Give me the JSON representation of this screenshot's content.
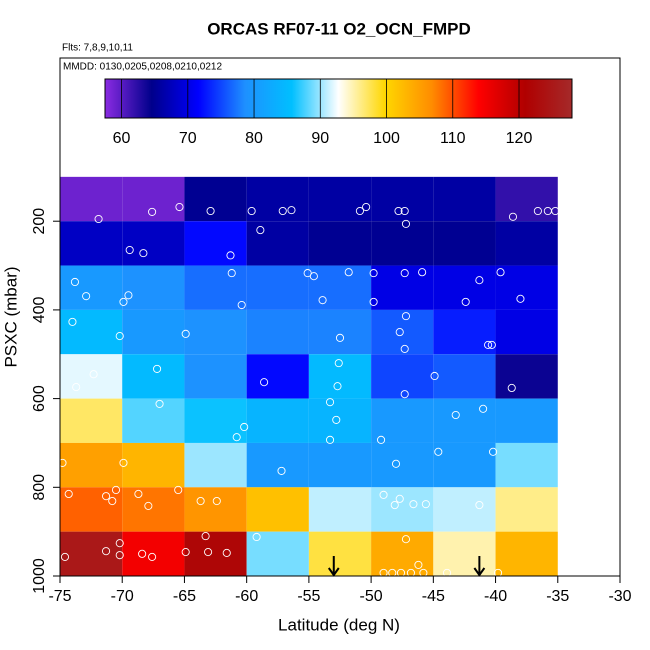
{
  "chart_data": {
    "type": "heatmap",
    "title": "ORCAS RF07-11 O2_OCN_FMPD",
    "subtitle": "Flts: 7,8,9,10,11",
    "annotation": "MMDD: 0130,0205,0208,0210,0212",
    "x_label": "Latitude (deg N)",
    "y_label": "PSXC (mbar)",
    "xlim": [
      -75,
      -30
    ],
    "ylim": [
      1000,
      -168
    ],
    "xticks": [
      -75,
      -70,
      -65,
      -60,
      -55,
      -50,
      -45,
      -40,
      -35,
      -30
    ],
    "yticks": [
      200,
      400,
      600,
      800,
      1000
    ],
    "x_bins": [
      -75,
      -70,
      -65,
      -60,
      -55,
      -50,
      -45,
      -40,
      -35
    ],
    "y_bins": [
      100,
      200,
      300,
      400,
      500,
      600,
      700,
      800,
      900,
      1000
    ],
    "z": [
      [
        59,
        59,
        65,
        66,
        66,
        66,
        66,
        62
      ],
      [
        68,
        68,
        72,
        66,
        65,
        65,
        65,
        66
      ],
      [
        80,
        79,
        77,
        77,
        77,
        70,
        70,
        70
      ],
      [
        85,
        80,
        79,
        78,
        78,
        76,
        73,
        70
      ],
      [
        92,
        85,
        79,
        72,
        85,
        75,
        76,
        64
      ],
      [
        97,
        88,
        86,
        84,
        84,
        80,
        80,
        80
      ],
      [
        105,
        103,
        90,
        80,
        80,
        80,
        80,
        89
      ],
      [
        109,
        108,
        106,
        102,
        91,
        90,
        91,
        96
      ],
      [
        125,
        115,
        122,
        89,
        98,
        104,
        95,
        103
      ]
    ],
    "clim": [
      57.5,
      128
    ],
    "colorbar_ticks": [
      60,
      70,
      80,
      90,
      100,
      110,
      120
    ],
    "colormap": [
      "#8a2be2",
      "#00008b",
      "#0000ff",
      "#1e90ff",
      "#00bfff",
      "#ffffff",
      "#ffd700",
      "#ff8c00",
      "#ff0000",
      "#b00000",
      "#a52a2a"
    ],
    "points": {
      "x": [
        -71.9,
        -67.6,
        -65.4,
        -62.9,
        -59.6,
        -57.1,
        -56.4,
        -50.9,
        -50.4,
        -47.8,
        -47.3,
        -47.2,
        -38.6,
        -36.6,
        -35.8,
        -35.2,
        -58.9,
        -69.4,
        -68.3,
        -61.3,
        -61.2,
        -55.1,
        -54.6,
        -51.8,
        -49.8,
        -47.3,
        -45.9,
        -41.3,
        -39.6,
        -73.8,
        -72.9,
        -69.5,
        -69.9,
        -53.9,
        -49.8,
        -47.2,
        -42.4,
        -38.0,
        -74.0,
        -64.9,
        -70.2,
        -60.4,
        -52.5,
        -47.7,
        -47.3,
        -40.6,
        -40.3,
        -72.3,
        -67.2,
        -73.7,
        -58.6,
        -52.6,
        -52.7,
        -47.3,
        -44.9,
        -38.7,
        -67.0,
        -60.2,
        -60.8,
        -53.3,
        -52.8,
        -53.3,
        -49.2,
        -43.2,
        -41.0,
        -40.2,
        -44.6,
        -48.0,
        -57.2,
        -74.8,
        -69.9,
        -74.3,
        -71.3,
        -70.8,
        -70.5,
        -68.7,
        -67.9,
        -65.5,
        -63.7,
        -62.4,
        -49.0,
        -48.1,
        -47.7,
        -46.6,
        -45.6,
        -41.3,
        -59.2,
        -74.6,
        -71.3,
        -70.2,
        -70.2,
        -68.4,
        -67.6,
        -64.9,
        -63.3,
        -63.1,
        -61.6,
        -47.2,
        -46.2,
        -49.0,
        -48.3,
        -47.6,
        -46.8,
        -45.8,
        -43.9,
        -39.8
      ],
      "y": [
        195,
        179,
        168,
        177,
        177,
        177,
        175,
        177,
        168,
        177,
        177,
        206,
        190,
        177,
        177,
        177,
        220,
        265,
        272,
        277,
        317,
        317,
        324,
        315,
        317,
        317,
        315,
        333,
        315,
        337,
        369,
        367,
        382,
        378,
        382,
        414,
        382,
        375,
        427,
        454,
        459,
        389,
        463,
        450,
        488,
        479,
        479,
        545,
        533,
        574,
        563,
        520,
        572,
        590,
        549,
        576,
        612,
        664,
        687,
        608,
        648,
        693,
        693,
        637,
        623,
        720,
        720,
        747,
        763,
        745,
        745,
        815,
        820,
        831,
        806,
        815,
        842,
        806,
        831,
        831,
        817,
        840,
        826,
        838,
        838,
        840,
        912,
        957,
        944,
        926,
        953,
        950,
        957,
        946,
        910,
        946,
        948,
        917,
        975,
        993,
        993,
        993,
        993,
        993,
        993,
        993
      ]
    },
    "arrow_x": [
      -53,
      -41.3
    ]
  }
}
